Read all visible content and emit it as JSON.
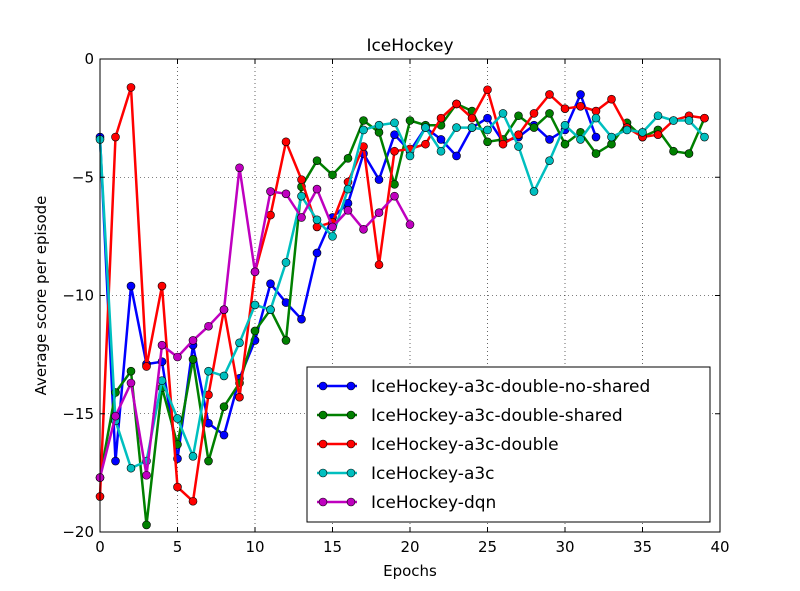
{
  "chart_data": {
    "type": "line",
    "title": "IceHockey",
    "xlabel": "Epochs",
    "ylabel": "Average score per episode",
    "xlim": [
      0,
      40
    ],
    "ylim": [
      -20,
      0
    ],
    "xticks": [
      0,
      5,
      10,
      15,
      20,
      25,
      30,
      35,
      40
    ],
    "yticks": [
      0,
      -5,
      -10,
      -15,
      -20
    ],
    "grid": true,
    "legend_position": "lower-right",
    "series": [
      {
        "name": "IceHockey-a3c-double-no-shared",
        "color": "#0000ff",
        "x": [
          0,
          1,
          2,
          3,
          4,
          5,
          6,
          7,
          8,
          9,
          10,
          11,
          12,
          13,
          14,
          15,
          16,
          17,
          18,
          19,
          20,
          21,
          22,
          23,
          24,
          25,
          26,
          27,
          28,
          29,
          30,
          31,
          32
        ],
        "values": [
          -3.3,
          -17.0,
          -9.6,
          -12.9,
          -12.8,
          -16.9,
          -12.1,
          -15.4,
          -15.9,
          -13.5,
          -11.9,
          -9.5,
          -10.3,
          -11.0,
          -8.2,
          -6.7,
          -6.1,
          -4.0,
          -5.1,
          -3.2,
          -3.9,
          -2.9,
          -3.4,
          -4.1,
          -2.9,
          -2.5,
          -3.5,
          -3.3,
          -2.8,
          -3.4,
          -3.0,
          -1.5,
          -3.3
        ]
      },
      {
        "name": "IceHockey-a3c-double-shared",
        "color": "#008000",
        "x": [
          0,
          1,
          2,
          3,
          4,
          5,
          6,
          7,
          8,
          9,
          10,
          11,
          12,
          13,
          14,
          15,
          16,
          17,
          18,
          19,
          20,
          21,
          22,
          23,
          24,
          25,
          26,
          27,
          28,
          29,
          30,
          31,
          32,
          33,
          34,
          35,
          36,
          37,
          38,
          39
        ],
        "values": [
          -17.7,
          -14.1,
          -13.2,
          -19.7,
          -13.9,
          -16.3,
          -12.7,
          -17.0,
          -14.7,
          -13.7,
          -11.5,
          -10.6,
          -11.9,
          -5.4,
          -4.3,
          -4.9,
          -4.2,
          -2.6,
          -3.1,
          -5.3,
          -2.6,
          -2.8,
          -2.8,
          -1.9,
          -2.2,
          -3.5,
          -3.4,
          -2.4,
          -2.9,
          -2.3,
          -3.6,
          -3.1,
          -4.0,
          -3.6,
          -2.7,
          -3.3,
          -3.0,
          -3.9,
          -4.0,
          -2.5
        ]
      },
      {
        "name": "IceHockey-a3c-double",
        "color": "#ff0000",
        "x": [
          0,
          1,
          2,
          3,
          4,
          5,
          6,
          7,
          8,
          9,
          10,
          11,
          12,
          13,
          14,
          15,
          16,
          17,
          18,
          19,
          20,
          21,
          22,
          23,
          24,
          25,
          26,
          27,
          28,
          29,
          30,
          31,
          32,
          33,
          34,
          35,
          36,
          37,
          38,
          39
        ],
        "values": [
          -18.5,
          -3.3,
          -1.2,
          -13.0,
          -9.6,
          -18.1,
          -18.7,
          -14.2,
          -10.6,
          -14.3,
          -9.0,
          -6.6,
          -3.5,
          -5.1,
          -7.1,
          -6.9,
          -5.2,
          -3.7,
          -8.7,
          -3.9,
          -3.8,
          -3.6,
          -2.5,
          -1.9,
          -2.5,
          -1.3,
          -3.6,
          -3.2,
          -2.3,
          -1.5,
          -2.1,
          -2.0,
          -2.2,
          -1.7,
          -2.9,
          -3.3,
          -3.2,
          -2.6,
          -2.4,
          -2.5
        ]
      },
      {
        "name": "IceHockey-a3c",
        "color": "#00bfbf",
        "x": [
          0,
          1,
          2,
          3,
          4,
          5,
          6,
          7,
          8,
          9,
          10,
          11,
          12,
          13,
          14,
          15,
          16,
          17,
          18,
          19,
          20,
          21,
          22,
          23,
          24,
          25,
          26,
          27,
          28,
          29,
          30,
          31,
          32,
          33,
          34,
          35,
          36,
          37,
          38,
          39
        ],
        "values": [
          -3.4,
          -15.3,
          -17.3,
          -17.0,
          -13.6,
          -15.2,
          -16.8,
          -13.2,
          -13.4,
          -12.0,
          -10.4,
          -10.6,
          -8.6,
          -5.8,
          -6.8,
          -7.5,
          -5.5,
          -3.0,
          -2.8,
          -2.7,
          -4.1,
          -2.9,
          -3.9,
          -2.9,
          -2.9,
          -3.0,
          -2.3,
          -3.7,
          -5.6,
          -4.3,
          -2.8,
          -3.4,
          -2.5,
          -3.3,
          -3.0,
          -3.1,
          -2.4,
          -2.6,
          -2.6,
          -3.3
        ]
      },
      {
        "name": "IceHockey-dqn",
        "color": "#bf00bf",
        "x": [
          0,
          1,
          2,
          3,
          4,
          5,
          6,
          7,
          8,
          9,
          10,
          11,
          12,
          13,
          14,
          15,
          16,
          17,
          18,
          19,
          20
        ],
        "values": [
          -17.7,
          -15.1,
          -13.7,
          -17.6,
          -12.1,
          -12.6,
          -11.9,
          -11.3,
          -10.6,
          -4.6,
          -9.0,
          -5.6,
          -5.7,
          -6.7,
          -5.5,
          -7.1,
          -6.4,
          -7.2,
          -6.5,
          -5.8,
          -7.0
        ]
      }
    ]
  }
}
